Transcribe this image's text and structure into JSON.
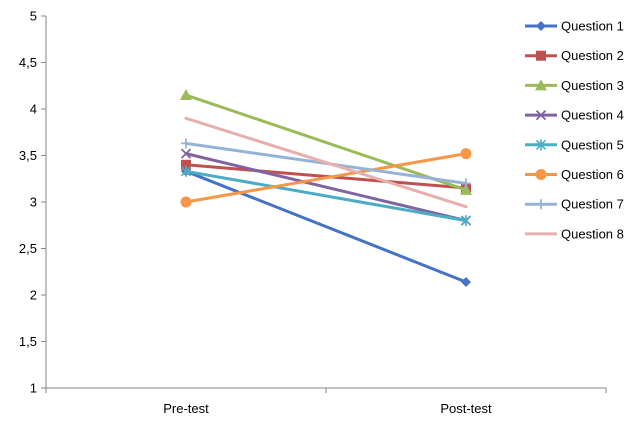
{
  "chart_data": {
    "type": "line",
    "title": "",
    "xlabel": "",
    "ylabel": "",
    "categories": [
      "Pre-test",
      "Post-test"
    ],
    "ylim": [
      1,
      5
    ],
    "yticks": [
      "1",
      "1,5",
      "2",
      "2,5",
      "3",
      "3,5",
      "4",
      "4,5",
      "5"
    ],
    "grid": false,
    "legend_position": "right",
    "series": [
      {
        "name": "Question 1",
        "values": [
          3.33,
          2.14
        ],
        "color": "#4472c4",
        "marker": "diamond"
      },
      {
        "name": "Question 2",
        "values": [
          3.4,
          3.15
        ],
        "color": "#c0504d",
        "marker": "square"
      },
      {
        "name": "Question 3",
        "values": [
          4.15,
          3.13
        ],
        "color": "#9bbb59",
        "marker": "triangle"
      },
      {
        "name": "Question 4",
        "values": [
          3.52,
          2.8
        ],
        "color": "#8064a2",
        "marker": "x"
      },
      {
        "name": "Question 5",
        "values": [
          3.33,
          2.8
        ],
        "color": "#4bacc6",
        "marker": "star"
      },
      {
        "name": "Question 6",
        "values": [
          3.0,
          3.52
        ],
        "color": "#f79646",
        "marker": "circle"
      },
      {
        "name": "Question 7",
        "values": [
          3.63,
          3.2
        ],
        "color": "#95b3d7",
        "marker": "plus"
      },
      {
        "name": "Question 8",
        "values": [
          3.9,
          2.95
        ],
        "color": "#e6b0ac",
        "marker": "none"
      }
    ]
  }
}
